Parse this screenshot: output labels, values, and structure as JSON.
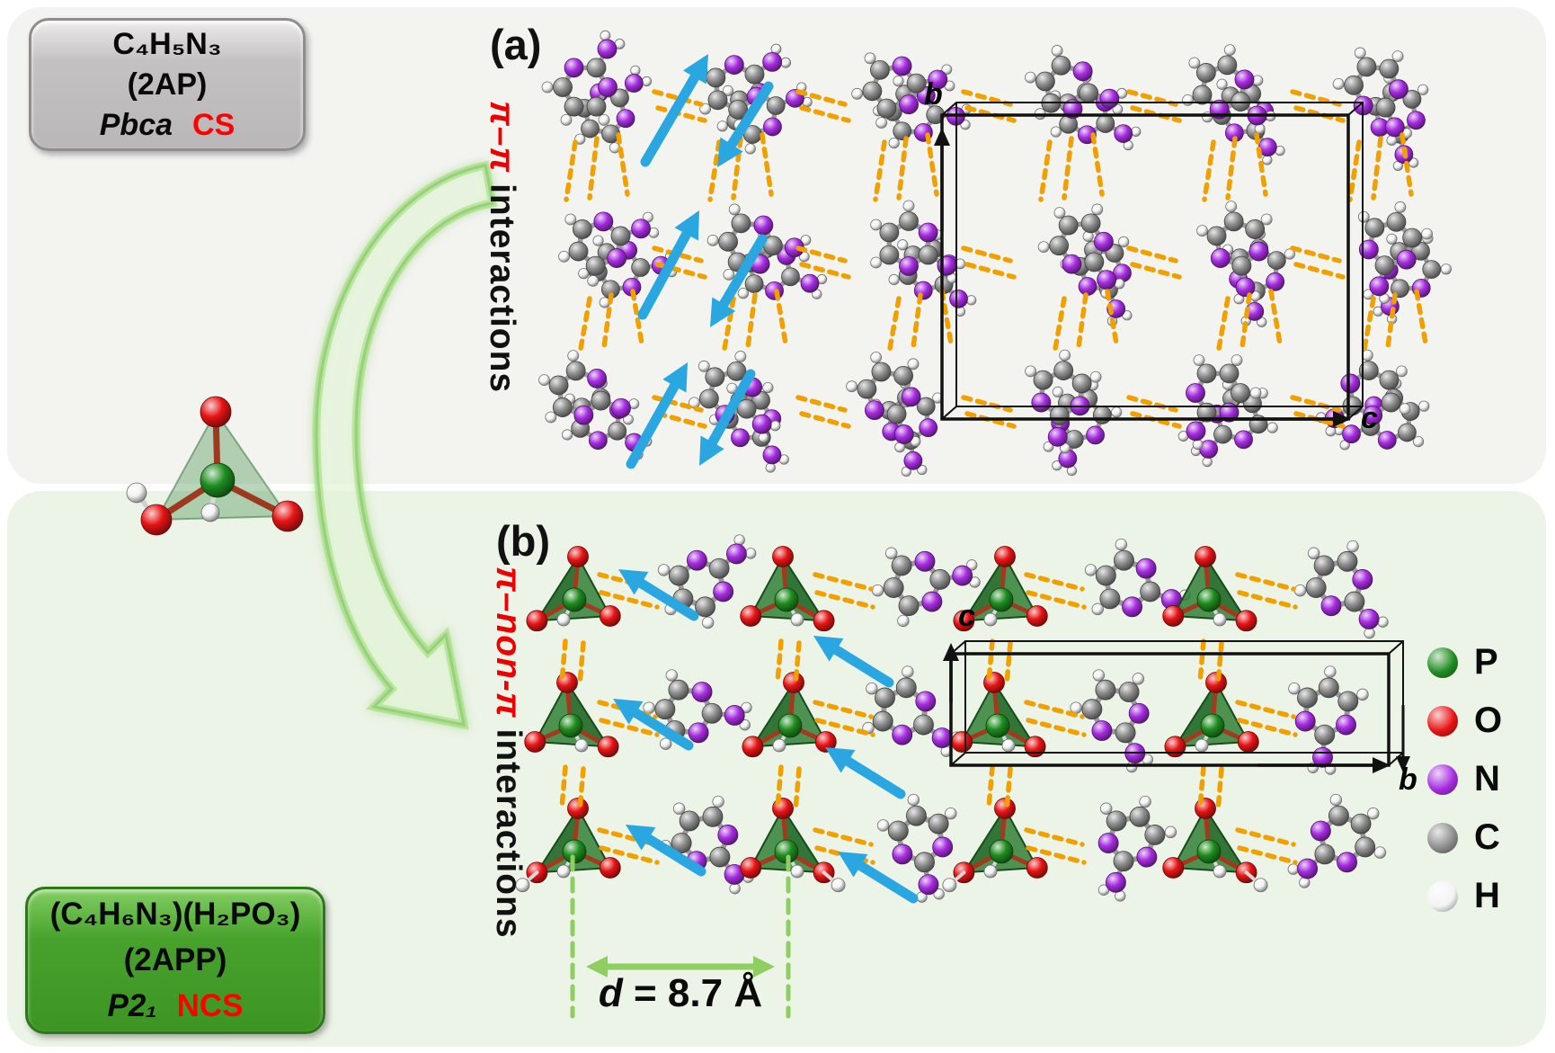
{
  "compound_top": {
    "formula": "C₄H₅N₃",
    "name": "(2AP)",
    "space_group": "Pbca",
    "symmetry": "CS"
  },
  "compound_bottom": {
    "formula": "(C₄H₆N₃)(H₂PO₃)",
    "name": "(2APP)",
    "space_group": "P2₁",
    "symmetry": "NCS"
  },
  "panel_a": {
    "label": "(a)",
    "interaction_red": "π–π",
    "interaction_black": " interactions",
    "axis_b": "b",
    "axis_c": "c"
  },
  "panel_b": {
    "label": "(b)",
    "interaction_red": "π–non-π",
    "interaction_black": " interactions",
    "axis_c": "c",
    "axis_b": "b",
    "distance_var": "d",
    "distance_value": " = 8.7 Å"
  },
  "legend": {
    "items": [
      {
        "symbol": "P",
        "color": "#1e8c1e"
      },
      {
        "symbol": "O",
        "color": "#e61414"
      },
      {
        "symbol": "N",
        "color": "#a62ce0"
      },
      {
        "symbol": "C",
        "color": "#8d8d8d"
      },
      {
        "symbol": "H",
        "color": "#f3f3f3"
      }
    ]
  },
  "colors": {
    "hbond_dash": "#f0a100",
    "dipole_arrow": "#2aa7e0",
    "annotation_green": "#8fce60",
    "transform_arrow_green": "#96d378",
    "unit_cell": "#111111",
    "symmetry_red": "#ff0000",
    "tetrahedron_green": "#2a7d30"
  }
}
